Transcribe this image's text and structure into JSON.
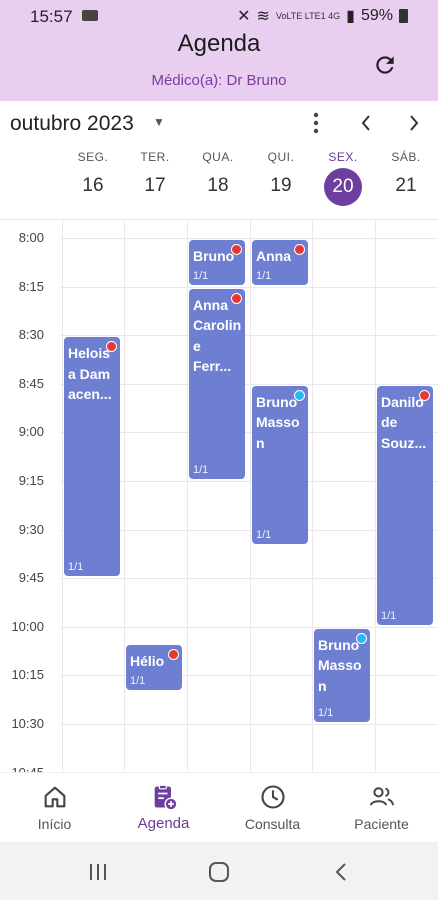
{
  "status": {
    "time": "15:57",
    "battery": "59%",
    "lte": "VoLTE LTE1 4G"
  },
  "header": {
    "title": "Agenda",
    "subtitle": "Médico(a): Dr Bruno"
  },
  "calendar": {
    "month_label": "outubro 2023",
    "days": [
      {
        "name": "SEG.",
        "num": "16"
      },
      {
        "name": "TER.",
        "num": "17"
      },
      {
        "name": "QUA.",
        "num": "18"
      },
      {
        "name": "QUI.",
        "num": "19"
      },
      {
        "name": "SEX.",
        "num": "20"
      },
      {
        "name": "SÁB.",
        "num": "21"
      }
    ],
    "times": [
      "8:00",
      "8:15",
      "8:30",
      "8:45",
      "9:00",
      "9:15",
      "9:30",
      "9:45",
      "10:00",
      "10:15",
      "10:30",
      "10:45"
    ],
    "events": [
      {
        "day": 2,
        "start": "8:00",
        "end": "8:15",
        "name": "Bruno",
        "count": "1/1",
        "dot": "#e53935"
      },
      {
        "day": 3,
        "start": "8:00",
        "end": "8:15",
        "name": "Anna",
        "count": "1/1",
        "dot": "#e53935"
      },
      {
        "day": 2,
        "start": "8:15",
        "end": "9:15",
        "name": "Anna Carolin e Ferr...",
        "count": "1/1",
        "dot": "#e53935"
      },
      {
        "day": 0,
        "start": "8:30",
        "end": "9:45",
        "name": "Helois a Dam acen...",
        "count": "1/1",
        "dot": "#e53935"
      },
      {
        "day": 3,
        "start": "8:45",
        "end": "9:35",
        "name": "Bruno Masso n",
        "count": "1/1",
        "dot": "#29b6f6"
      },
      {
        "day": 5,
        "start": "8:45",
        "end": "10:00",
        "name": "Danilo de Souz...",
        "count": "1/1",
        "dot": "#e53935"
      },
      {
        "day": 4,
        "start": "10:00",
        "end": "10:30",
        "name": "Bruno Masso n",
        "count": "1/1",
        "dot": "#29b6f6"
      },
      {
        "day": 1,
        "start": "10:05",
        "end": "10:20",
        "name": "Hélio",
        "count": "1/1",
        "dot": "#e53935"
      }
    ]
  },
  "bottom_nav": [
    {
      "label": "Início",
      "icon": "home-icon"
    },
    {
      "label": "Agenda",
      "icon": "calendar-add-icon",
      "active": true
    },
    {
      "label": "Consulta",
      "icon": "clock-icon"
    },
    {
      "label": "Paciente",
      "icon": "people-icon"
    }
  ],
  "colors": {
    "header_bg": "#e8cff0",
    "accent": "#6e3f9f",
    "event": "#6e7fd1",
    "dot_red": "#e53935",
    "dot_blue": "#29b6f6"
  }
}
